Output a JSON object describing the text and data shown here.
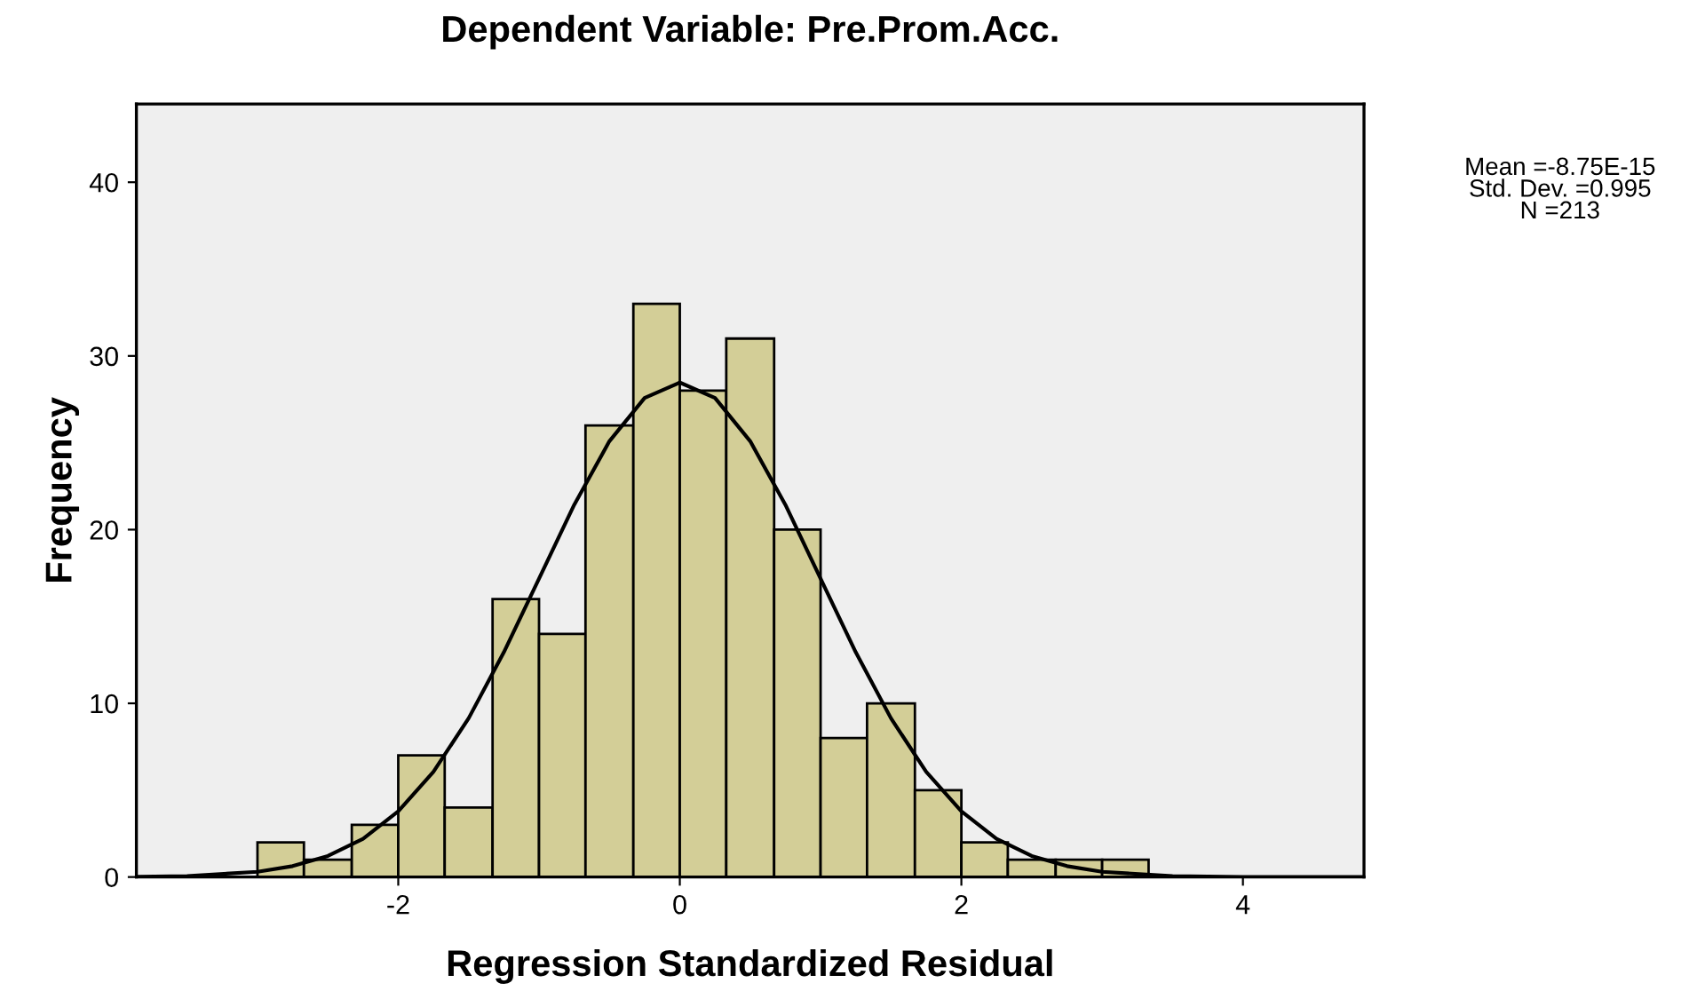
{
  "chart_data": {
    "type": "histogram",
    "title": "Dependent Variable: Pre.Prom.Acc.",
    "xlabel": "Regression Standardized Residual",
    "ylabel": "Frequency",
    "bins": [
      -3,
      -2.67,
      -2.33,
      -2,
      -1.67,
      -1.33,
      -1,
      -0.67,
      -0.33,
      0,
      0.33,
      0.67,
      1,
      1.33,
      1.67,
      2,
      2.33,
      2.67,
      3,
      3.33
    ],
    "values": [
      2,
      1,
      3,
      7,
      4,
      16,
      14,
      26,
      33,
      28,
      31,
      20,
      8,
      10,
      5,
      2,
      1,
      1,
      1
    ],
    "color": "#d3ce97",
    "series": [
      {
        "type": "line",
        "color": "#000000",
        "x": [
          -3.85,
          -3.5,
          -3,
          -2.75,
          -2.5,
          -2.25,
          -2,
          -1.75,
          -1.5,
          -1.25,
          -1,
          -0.75,
          -0.5,
          -0.25,
          0,
          0.25,
          0.5,
          0.75,
          1,
          1.25,
          1.5,
          1.75,
          2,
          2.25,
          2.5,
          2.75,
          3,
          3.5,
          4,
          4.5,
          4.85
        ],
        "values": [
          0.02,
          0.06,
          0.3,
          0.63,
          1.21,
          2.2,
          3.78,
          6.06,
          9.14,
          12.94,
          17.18,
          21.43,
          25.09,
          27.58,
          28.47,
          27.58,
          25.09,
          21.43,
          17.18,
          12.94,
          9.14,
          6.06,
          3.78,
          2.2,
          1.21,
          0.63,
          0.3,
          0.06,
          0.01,
          0,
          0
        ]
      }
    ],
    "xlim": [
      -3.86,
      4.86
    ],
    "ylim": [
      0,
      44.5
    ],
    "xticks": [
      -2,
      0,
      2,
      4
    ],
    "yticks": [
      0,
      10,
      20,
      30,
      40
    ],
    "grid": false,
    "annotations": [
      "Mean =-8.75E-15",
      "Std. Dev. =0.995",
      "N =213"
    ]
  }
}
